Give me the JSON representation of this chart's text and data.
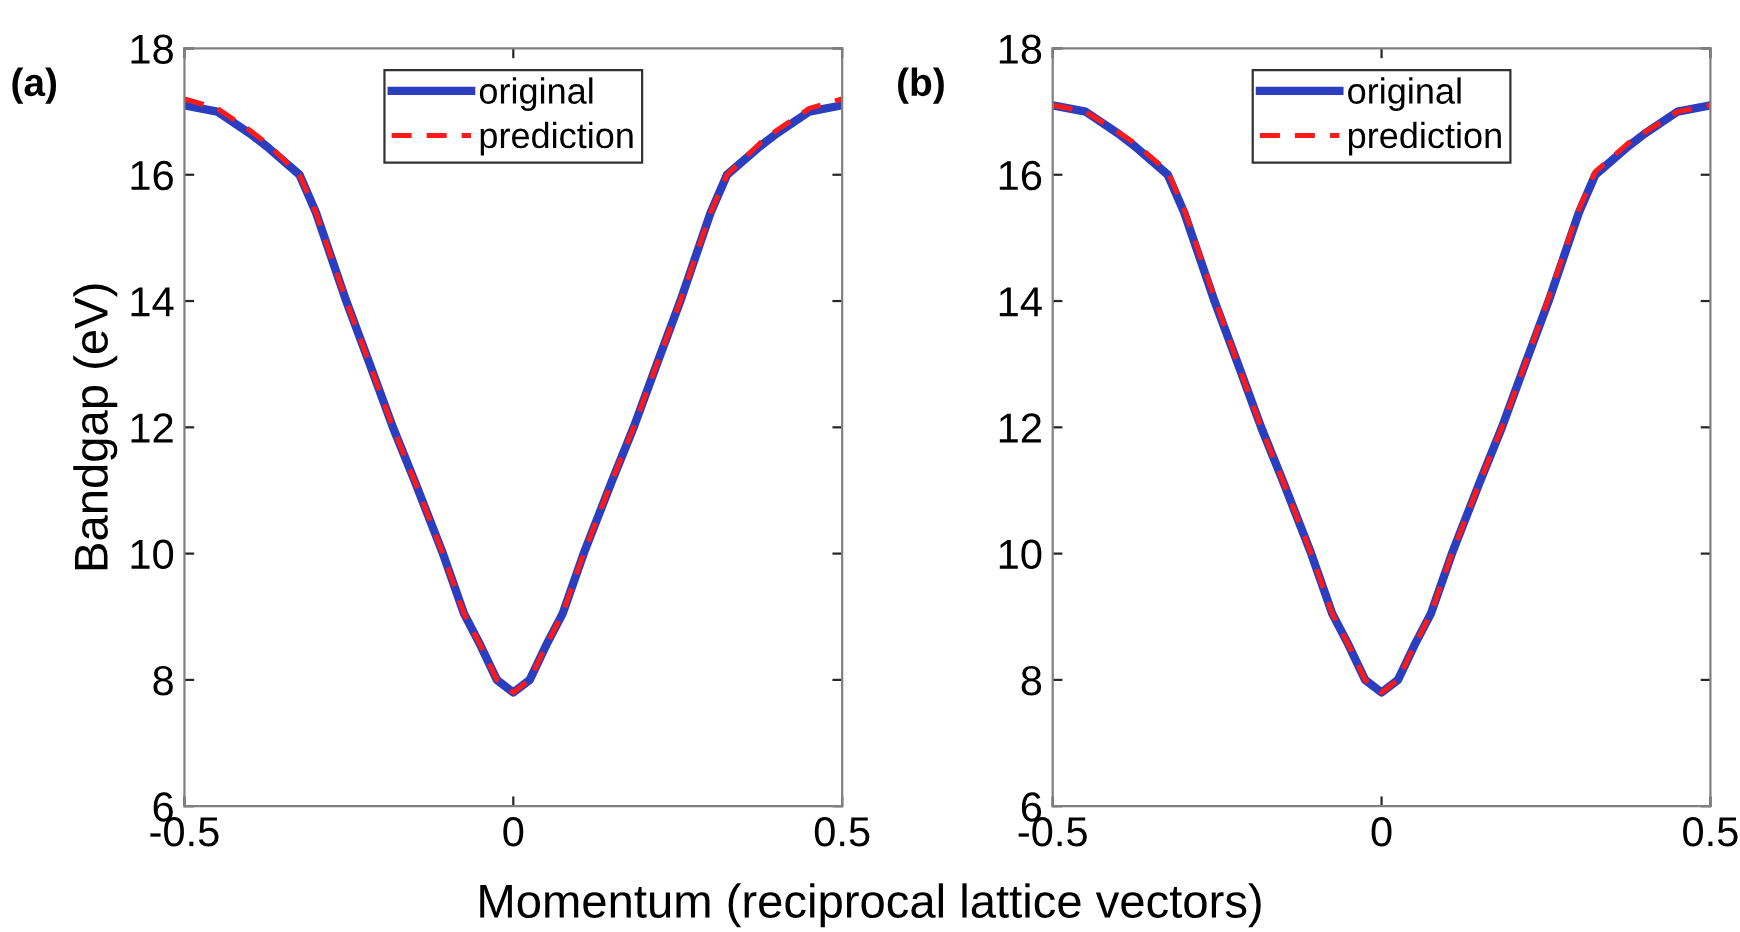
{
  "chart_data": [
    {
      "type": "line",
      "xlabel": "Momentum (reciprocal lattice vectors)",
      "ylabel": "Bandgap (eV)",
      "annotations": [
        "(a)"
      ],
      "x": [
        -0.5,
        -0.45,
        -0.4,
        -0.375,
        -0.325,
        -0.3,
        -0.254,
        -0.22,
        -0.183,
        -0.15,
        -0.107,
        -0.075,
        -0.05,
        -0.025,
        0,
        0.025,
        0.05,
        0.075,
        0.107,
        0.15,
        0.183,
        0.22,
        0.254,
        0.3,
        0.325,
        0.375,
        0.4,
        0.45,
        0.5
      ],
      "series": [
        {
          "name": "original",
          "color": "#2b3ebf",
          "line_style": "solid",
          "values": [
            17.1,
            17.0,
            16.65,
            16.45,
            16,
            15.4,
            14,
            13.05,
            12,
            11.15,
            10,
            9.05,
            8.55,
            8,
            7.8,
            8,
            8.55,
            9.05,
            10,
            11.15,
            12,
            13.05,
            14,
            15.4,
            16,
            16.45,
            16.65,
            17.0,
            17.1
          ]
        },
        {
          "name": "prediction",
          "color": "#ff1a1a",
          "line_style": "dashed",
          "values": [
            17.2,
            17.05,
            16.7,
            16.5,
            16,
            15.4,
            14,
            13.05,
            12,
            11.15,
            10,
            9.05,
            8.55,
            8,
            7.8,
            8,
            8.55,
            9.05,
            10,
            11.15,
            12,
            13.05,
            14,
            15.4,
            16,
            16.5,
            16.7,
            17.05,
            17.2
          ]
        }
      ],
      "xlim": [
        -0.5,
        0.5
      ],
      "ylim": [
        6,
        18
      ],
      "xticks": [
        -0.5,
        0,
        0.5
      ],
      "yticks": [
        6,
        8,
        10,
        12,
        14,
        16,
        18
      ],
      "grid": false,
      "legend": "top",
      "marker": "none"
    },
    {
      "type": "line",
      "annotations": [
        "(b)"
      ],
      "x": [
        -0.5,
        -0.45,
        -0.4,
        -0.375,
        -0.325,
        -0.3,
        -0.254,
        -0.22,
        -0.183,
        -0.15,
        -0.107,
        -0.075,
        -0.05,
        -0.025,
        0,
        0.025,
        0.05,
        0.075,
        0.107,
        0.15,
        0.183,
        0.22,
        0.254,
        0.3,
        0.325,
        0.375,
        0.4,
        0.45,
        0.5
      ],
      "series": [
        {
          "name": "original",
          "color": "#2b3ebf",
          "line_style": "solid",
          "values": [
            17.1,
            17.0,
            16.65,
            16.45,
            16,
            15.4,
            14,
            13.05,
            12,
            11.15,
            10,
            9.05,
            8.55,
            8,
            7.8,
            8,
            8.55,
            9.05,
            10,
            11.15,
            12,
            13.05,
            14,
            15.4,
            16,
            16.45,
            16.65,
            17.0,
            17.1
          ]
        },
        {
          "name": "prediction",
          "color": "#ff1a1a",
          "line_style": "dashed",
          "values": [
            17.1,
            17.0,
            16.67,
            16.5,
            16.05,
            15.45,
            14.05,
            13.05,
            12,
            11.15,
            10,
            9.05,
            8.55,
            8,
            7.8,
            8,
            8.55,
            9.05,
            10,
            11.15,
            12,
            13.05,
            14.05,
            15.45,
            16.05,
            16.5,
            16.67,
            17.0,
            17.1
          ]
        }
      ],
      "xlim": [
        -0.5,
        0.5
      ],
      "ylim": [
        6,
        18
      ],
      "xticks": [
        -0.5,
        0,
        0.5
      ],
      "yticks": [
        6,
        8,
        10,
        12,
        14,
        16,
        18
      ],
      "grid": false,
      "legend": "top",
      "marker": "none"
    }
  ]
}
